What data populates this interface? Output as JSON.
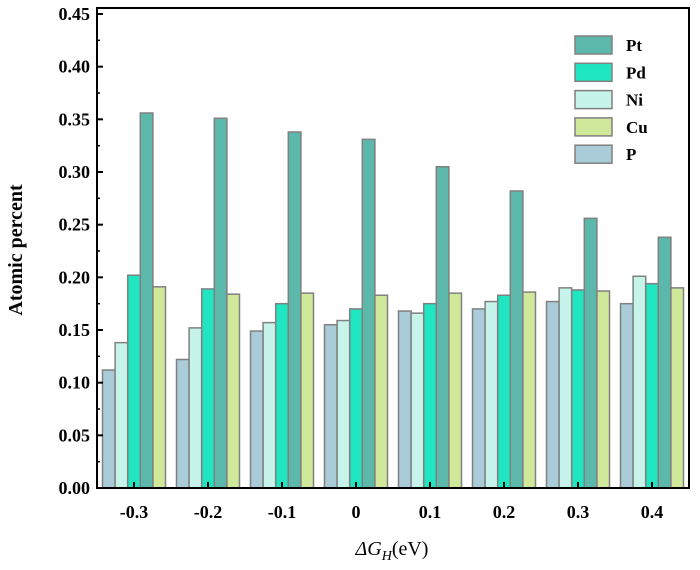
{
  "chart_data": {
    "type": "bar",
    "title": "",
    "xlabel": "ΔG_H(eV)",
    "xlabel_main": "ΔG",
    "xlabel_sub": "H",
    "xlabel_unit": "(eV)",
    "ylabel": "Atomic percent",
    "ylim": [
      0,
      0.45
    ],
    "yticks": [
      "0.00",
      "0.05",
      "0.10",
      "0.15",
      "0.20",
      "0.25",
      "0.30",
      "0.35",
      "0.40",
      "0.45"
    ],
    "categories": [
      "-0.3",
      "-0.2",
      "-0.1",
      "0",
      "0.1",
      "0.2",
      "0.3",
      "0.4"
    ],
    "grid": false,
    "legend_position": "top-right",
    "legend_order": [
      "Pt",
      "Pd",
      "Ni",
      "Cu",
      "P"
    ],
    "series": [
      {
        "name": "P",
        "color": "#a9ccd8",
        "values": [
          0.112,
          0.122,
          0.149,
          0.155,
          0.168,
          0.17,
          0.177,
          0.175
        ]
      },
      {
        "name": "Ni",
        "color": "#c6f4ea",
        "values": [
          0.138,
          0.152,
          0.157,
          0.159,
          0.166,
          0.177,
          0.19,
          0.201
        ]
      },
      {
        "name": "Pd",
        "color": "#1fe6c0",
        "values": [
          0.202,
          0.189,
          0.175,
          0.17,
          0.175,
          0.183,
          0.188,
          0.194
        ]
      },
      {
        "name": "Pt",
        "color": "#5cb8aa",
        "values": [
          0.356,
          0.351,
          0.338,
          0.331,
          0.305,
          0.282,
          0.256,
          0.238
        ]
      },
      {
        "name": "Cu",
        "color": "#cfe89a",
        "values": [
          0.191,
          0.184,
          0.185,
          0.183,
          0.185,
          0.186,
          0.187,
          0.19
        ]
      }
    ]
  }
}
